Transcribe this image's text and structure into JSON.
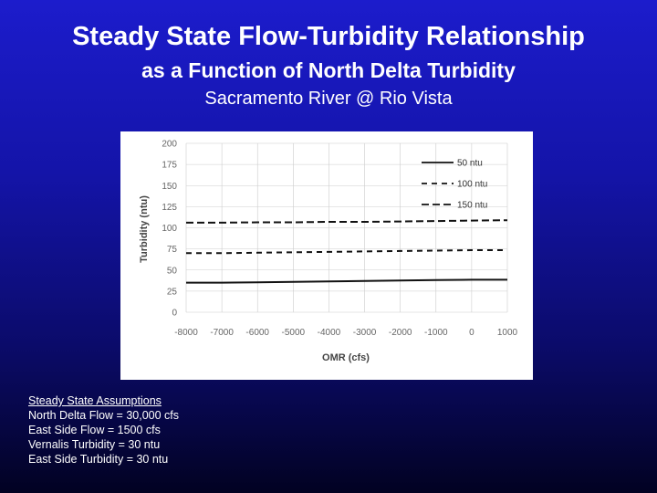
{
  "slide": {
    "title": "Steady State Flow-Turbidity Relationship",
    "subtitle": "as a Function of North Delta Turbidity",
    "location": "Sacramento River @ Rio Vista"
  },
  "assumptions": {
    "heading": "Steady State Assumptions",
    "items": [
      "North Delta Flow = 30,000 cfs",
      "East Side Flow = 1500 cfs",
      "Vernalis Turbidity = 30 ntu",
      "East Side Turbidity = 30 ntu"
    ]
  },
  "chart_data": {
    "type": "line",
    "xlabel": "OMR (cfs)",
    "ylabel": "Turbidity (ntu)",
    "xlim": [
      -8000,
      1000
    ],
    "ylim": [
      0,
      200
    ],
    "x_ticks": [
      -8000,
      -7000,
      -6000,
      -5000,
      -4000,
      -3000,
      -2000,
      -1000,
      0,
      1000
    ],
    "y_ticks": [
      0,
      25,
      50,
      75,
      100,
      125,
      150,
      175,
      200
    ],
    "grid": true,
    "legend_position": "top-right",
    "x": [
      -8000,
      -7000,
      -6000,
      -5000,
      -4000,
      -3000,
      -2000,
      -1000,
      0,
      1000
    ],
    "series": [
      {
        "name": "50 ntu",
        "style": "solid",
        "values": [
          35,
          35,
          35.5,
          36,
          36.5,
          37,
          37.5,
          38,
          38.5,
          38.5
        ]
      },
      {
        "name": "100 ntu",
        "style": "dashed",
        "values": [
          70,
          70,
          70.5,
          71,
          71.5,
          72,
          72.5,
          73,
          73.5,
          73.5
        ]
      },
      {
        "name": "150 ntu",
        "style": "long-dashed",
        "values": [
          106,
          106,
          106.5,
          106.5,
          107,
          107,
          107.5,
          108,
          108.5,
          109
        ]
      }
    ],
    "colors": {
      "line": "#111111",
      "grid": "#cccccc",
      "tick_text": "#666666"
    }
  }
}
